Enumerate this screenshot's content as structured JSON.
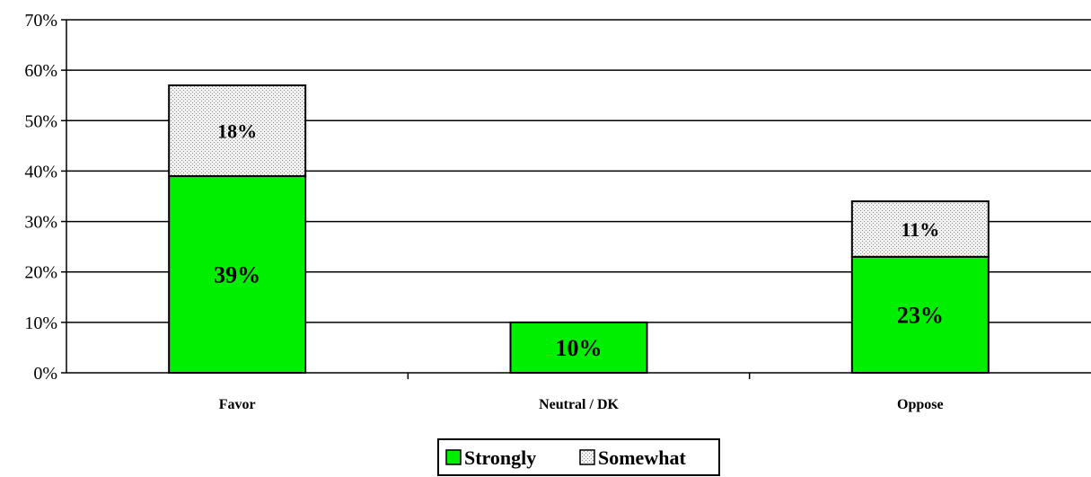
{
  "chart_data": {
    "type": "bar",
    "stacked": true,
    "categories": [
      "Favor",
      "Neutral / DK",
      "Oppose"
    ],
    "series": [
      {
        "name": "Strongly",
        "values": [
          39,
          10,
          23
        ],
        "color": "#00ee00",
        "labels": [
          "39%",
          "10%",
          "23%"
        ]
      },
      {
        "name": "Somewhat",
        "values": [
          18,
          null,
          11
        ],
        "color": "#e6e6e6",
        "pattern": "dotted",
        "labels": [
          "18%",
          "",
          "11%"
        ]
      }
    ],
    "ylim": [
      0,
      70
    ],
    "yticks": [
      "0%",
      "10%",
      "20%",
      "30%",
      "40%",
      "50%",
      "60%",
      "70%"
    ],
    "grid": true,
    "legend_placement": "bottom-center",
    "title": "",
    "xlabel": "",
    "ylabel": ""
  }
}
